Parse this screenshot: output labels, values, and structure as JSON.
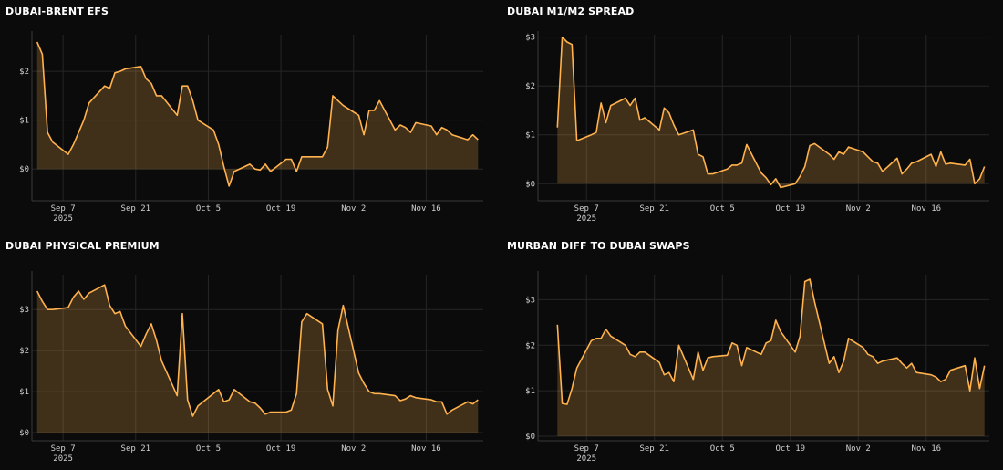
{
  "theme": {
    "background": "#0b0b0b",
    "line_color": "#ffb24d",
    "area_color": "rgba(255,178,77,0.22)",
    "grid_color": "#262626"
  },
  "chart_data": [
    {
      "type": "area",
      "title": "DUBAI-BRENT EFS",
      "xlabel": "",
      "ylabel": "",
      "x_range": [
        "2025-09-01",
        "2025-11-27"
      ],
      "ylim": [
        -0.65,
        2.75
      ],
      "yticks": [
        0,
        1,
        2
      ],
      "ytick_labels": [
        "$0",
        "$1",
        "$2"
      ],
      "xtick_dates": [
        "2025-09-07",
        "2025-09-21",
        "2025-10-05",
        "2025-10-19",
        "2025-11-02",
        "2025-11-16"
      ],
      "xtick_labels": [
        "Sep 7",
        "Sep 21",
        "Oct 5",
        "Oct 19",
        "Nov 2",
        "Nov 16"
      ],
      "year_label": "2025",
      "grid": true,
      "series": [
        {
          "x": [
            "2025-09-02",
            "2025-09-03",
            "2025-09-04",
            "2025-09-05",
            "2025-09-08",
            "2025-09-09",
            "2025-09-10",
            "2025-09-11",
            "2025-09-12",
            "2025-09-15",
            "2025-09-16",
            "2025-09-17",
            "2025-09-18",
            "2025-09-19",
            "2025-09-22",
            "2025-09-23",
            "2025-09-24",
            "2025-09-25",
            "2025-09-26",
            "2025-09-29",
            "2025-09-30",
            "2025-10-01",
            "2025-10-02",
            "2025-10-03",
            "2025-10-06",
            "2025-10-07",
            "2025-10-08",
            "2025-10-09",
            "2025-10-10",
            "2025-10-13",
            "2025-10-14",
            "2025-10-15",
            "2025-10-16",
            "2025-10-17",
            "2025-10-20",
            "2025-10-21",
            "2025-10-22",
            "2025-10-23",
            "2025-10-24",
            "2025-10-27",
            "2025-10-28",
            "2025-10-29",
            "2025-10-30",
            "2025-10-31",
            "2025-11-03",
            "2025-11-04",
            "2025-11-05",
            "2025-11-06",
            "2025-11-07",
            "2025-11-10",
            "2025-11-11",
            "2025-11-12",
            "2025-11-13",
            "2025-11-14",
            "2025-11-17",
            "2025-11-18",
            "2025-11-19",
            "2025-11-20",
            "2025-11-21",
            "2025-11-24",
            "2025-11-25",
            "2025-11-26"
          ],
          "y": [
            2.6,
            2.35,
            0.75,
            0.55,
            0.3,
            0.5,
            0.75,
            1.0,
            1.35,
            1.7,
            1.65,
            1.97,
            2.0,
            2.05,
            2.1,
            1.85,
            1.75,
            1.5,
            1.5,
            1.1,
            1.7,
            1.7,
            1.4,
            1.0,
            0.8,
            0.5,
            0.05,
            -0.35,
            -0.05,
            0.1,
            0.0,
            -0.02,
            0.1,
            -0.05,
            0.2,
            0.2,
            -0.05,
            0.25,
            0.25,
            0.25,
            0.45,
            1.5,
            1.4,
            1.3,
            1.1,
            0.7,
            1.2,
            1.2,
            1.4,
            0.8,
            0.9,
            0.85,
            0.75,
            0.95,
            0.88,
            0.7,
            0.85,
            0.8,
            0.7,
            0.6,
            0.7,
            0.6
          ]
        }
      ]
    },
    {
      "type": "area",
      "title": "DUBAI M1/M2 SPREAD",
      "xlabel": "",
      "ylabel": "",
      "x_range": [
        "2025-08-28",
        "2025-11-29"
      ],
      "ylim": [
        -0.35,
        3.05
      ],
      "yticks": [
        0,
        1,
        2,
        3
      ],
      "ytick_labels": [
        "$0",
        "$1",
        "$2",
        "$3"
      ],
      "xtick_dates": [
        "2025-09-07",
        "2025-09-21",
        "2025-10-05",
        "2025-10-19",
        "2025-11-02",
        "2025-11-16"
      ],
      "xtick_labels": [
        "Sep 7",
        "Sep 21",
        "Oct 5",
        "Oct 19",
        "Nov 2",
        "Nov 16"
      ],
      "year_label": "2025",
      "grid": true,
      "series": [
        {
          "x": [
            "2025-09-01",
            "2025-09-02",
            "2025-09-03",
            "2025-09-04",
            "2025-09-05",
            "2025-09-08",
            "2025-09-09",
            "2025-09-10",
            "2025-09-11",
            "2025-09-12",
            "2025-09-15",
            "2025-09-16",
            "2025-09-17",
            "2025-09-18",
            "2025-09-19",
            "2025-09-22",
            "2025-09-23",
            "2025-09-24",
            "2025-09-25",
            "2025-09-26",
            "2025-09-29",
            "2025-09-30",
            "2025-10-01",
            "2025-10-02",
            "2025-10-03",
            "2025-10-06",
            "2025-10-07",
            "2025-10-08",
            "2025-10-09",
            "2025-10-10",
            "2025-10-13",
            "2025-10-14",
            "2025-10-15",
            "2025-10-16",
            "2025-10-17",
            "2025-10-20",
            "2025-10-21",
            "2025-10-22",
            "2025-10-23",
            "2025-10-24",
            "2025-10-27",
            "2025-10-28",
            "2025-10-29",
            "2025-10-30",
            "2025-10-31",
            "2025-11-03",
            "2025-11-04",
            "2025-11-05",
            "2025-11-06",
            "2025-11-07",
            "2025-11-10",
            "2025-11-11",
            "2025-11-12",
            "2025-11-13",
            "2025-11-14",
            "2025-11-17",
            "2025-11-18",
            "2025-11-19",
            "2025-11-20",
            "2025-11-21",
            "2025-11-24",
            "2025-11-25",
            "2025-11-26",
            "2025-11-27",
            "2025-11-28"
          ],
          "y": [
            1.15,
            3.0,
            2.9,
            2.85,
            0.88,
            1.0,
            1.05,
            1.65,
            1.25,
            1.6,
            1.75,
            1.6,
            1.75,
            1.3,
            1.35,
            1.1,
            1.55,
            1.45,
            1.2,
            1.0,
            1.1,
            0.6,
            0.55,
            0.2,
            0.2,
            0.3,
            0.38,
            0.38,
            0.42,
            0.8,
            0.22,
            0.12,
            -0.02,
            0.1,
            -0.08,
            0.0,
            0.15,
            0.35,
            0.78,
            0.82,
            0.6,
            0.5,
            0.65,
            0.6,
            0.75,
            0.65,
            0.55,
            0.45,
            0.42,
            0.25,
            0.52,
            0.2,
            0.3,
            0.42,
            0.45,
            0.6,
            0.35,
            0.65,
            0.4,
            0.42,
            0.38,
            0.5,
            0.0,
            0.1,
            0.35
          ]
        }
      ]
    },
    {
      "type": "area",
      "title": "DUBAI PHYSICAL PREMIUM",
      "xlabel": "",
      "ylabel": "",
      "x_range": [
        "2025-09-01",
        "2025-11-27"
      ],
      "ylim": [
        -0.2,
        3.85
      ],
      "yticks": [
        0,
        1,
        2,
        3
      ],
      "ytick_labels": [
        "$0",
        "$1",
        "$2",
        "$3"
      ],
      "xtick_dates": [
        "2025-09-07",
        "2025-09-21",
        "2025-10-05",
        "2025-10-19",
        "2025-11-02",
        "2025-11-16"
      ],
      "xtick_labels": [
        "Sep 7",
        "Sep 21",
        "Oct 5",
        "Oct 19",
        "Nov 2",
        "Nov 16"
      ],
      "year_label": "2025",
      "grid": true,
      "series": [
        {
          "x": [
            "2025-09-02",
            "2025-09-03",
            "2025-09-04",
            "2025-09-05",
            "2025-09-08",
            "2025-09-09",
            "2025-09-10",
            "2025-09-11",
            "2025-09-12",
            "2025-09-15",
            "2025-09-16",
            "2025-09-17",
            "2025-09-18",
            "2025-09-19",
            "2025-09-22",
            "2025-09-23",
            "2025-09-24",
            "2025-09-25",
            "2025-09-26",
            "2025-09-29",
            "2025-09-30",
            "2025-10-01",
            "2025-10-02",
            "2025-10-03",
            "2025-10-06",
            "2025-10-07",
            "2025-10-08",
            "2025-10-09",
            "2025-10-10",
            "2025-10-13",
            "2025-10-14",
            "2025-10-15",
            "2025-10-16",
            "2025-10-17",
            "2025-10-20",
            "2025-10-21",
            "2025-10-22",
            "2025-10-23",
            "2025-10-24",
            "2025-10-27",
            "2025-10-28",
            "2025-10-29",
            "2025-10-30",
            "2025-10-31",
            "2025-11-03",
            "2025-11-04",
            "2025-11-05",
            "2025-11-06",
            "2025-11-07",
            "2025-11-10",
            "2025-11-11",
            "2025-11-12",
            "2025-11-13",
            "2025-11-14",
            "2025-11-17",
            "2025-11-18",
            "2025-11-19",
            "2025-11-20",
            "2025-11-21",
            "2025-11-24",
            "2025-11-25",
            "2025-11-26"
          ],
          "y": [
            3.45,
            3.2,
            3.0,
            3.0,
            3.05,
            3.3,
            3.45,
            3.25,
            3.4,
            3.6,
            3.1,
            2.9,
            2.95,
            2.6,
            2.1,
            2.4,
            2.65,
            2.25,
            1.75,
            0.9,
            2.9,
            0.8,
            0.4,
            0.65,
            0.95,
            1.05,
            0.75,
            0.8,
            1.05,
            0.75,
            0.72,
            0.6,
            0.45,
            0.5,
            0.5,
            0.55,
            0.95,
            2.7,
            2.9,
            2.65,
            1.05,
            0.65,
            2.5,
            3.1,
            1.45,
            1.2,
            1.0,
            0.95,
            0.95,
            0.9,
            0.78,
            0.82,
            0.9,
            0.85,
            0.8,
            0.75,
            0.75,
            0.45,
            0.55,
            0.75,
            0.7,
            0.8
          ]
        }
      ]
    },
    {
      "type": "area",
      "title": "MURBAN DIFF TO DUBAI SWAPS",
      "xlabel": "",
      "ylabel": "",
      "x_range": [
        "2025-08-28",
        "2025-11-29"
      ],
      "ylim": [
        -0.1,
        3.55
      ],
      "yticks": [
        0,
        1,
        2,
        3
      ],
      "ytick_labels": [
        "$0",
        "$1",
        "$2",
        "$3"
      ],
      "xtick_dates": [
        "2025-09-07",
        "2025-09-21",
        "2025-10-05",
        "2025-10-19",
        "2025-11-02",
        "2025-11-16"
      ],
      "xtick_labels": [
        "Sep 7",
        "Sep 21",
        "Oct 5",
        "Oct 19",
        "Nov 2",
        "Nov 16"
      ],
      "year_label": "2025",
      "grid": true,
      "series": [
        {
          "x": [
            "2025-09-01",
            "2025-09-02",
            "2025-09-03",
            "2025-09-04",
            "2025-09-05",
            "2025-09-08",
            "2025-09-09",
            "2025-09-10",
            "2025-09-11",
            "2025-09-12",
            "2025-09-15",
            "2025-09-16",
            "2025-09-17",
            "2025-09-18",
            "2025-09-19",
            "2025-09-22",
            "2025-09-23",
            "2025-09-24",
            "2025-09-25",
            "2025-09-26",
            "2025-09-29",
            "2025-09-30",
            "2025-10-01",
            "2025-10-02",
            "2025-10-03",
            "2025-10-06",
            "2025-10-07",
            "2025-10-08",
            "2025-10-09",
            "2025-10-10",
            "2025-10-13",
            "2025-10-14",
            "2025-10-15",
            "2025-10-16",
            "2025-10-17",
            "2025-10-20",
            "2025-10-21",
            "2025-10-22",
            "2025-10-23",
            "2025-10-24",
            "2025-10-27",
            "2025-10-28",
            "2025-10-29",
            "2025-10-30",
            "2025-10-31",
            "2025-11-03",
            "2025-11-04",
            "2025-11-05",
            "2025-11-06",
            "2025-11-07",
            "2025-11-10",
            "2025-11-11",
            "2025-11-12",
            "2025-11-13",
            "2025-11-14",
            "2025-11-17",
            "2025-11-18",
            "2025-11-19",
            "2025-11-20",
            "2025-11-21",
            "2025-11-24",
            "2025-11-25",
            "2025-11-26",
            "2025-11-27",
            "2025-11-28"
          ],
          "y": [
            2.45,
            0.72,
            0.7,
            1.05,
            1.5,
            2.1,
            2.15,
            2.15,
            2.35,
            2.2,
            2.0,
            1.8,
            1.75,
            1.85,
            1.85,
            1.62,
            1.35,
            1.4,
            1.2,
            2.0,
            1.25,
            1.85,
            1.45,
            1.72,
            1.75,
            1.78,
            2.05,
            2.0,
            1.55,
            1.95,
            1.8,
            2.05,
            2.1,
            2.55,
            2.3,
            1.85,
            2.2,
            3.4,
            3.45,
            2.95,
            1.6,
            1.75,
            1.4,
            1.65,
            2.15,
            1.95,
            1.8,
            1.75,
            1.6,
            1.65,
            1.72,
            1.6,
            1.5,
            1.6,
            1.4,
            1.35,
            1.3,
            1.2,
            1.25,
            1.45,
            1.55,
            1.0,
            1.72,
            1.05,
            1.55
          ]
        }
      ]
    }
  ]
}
